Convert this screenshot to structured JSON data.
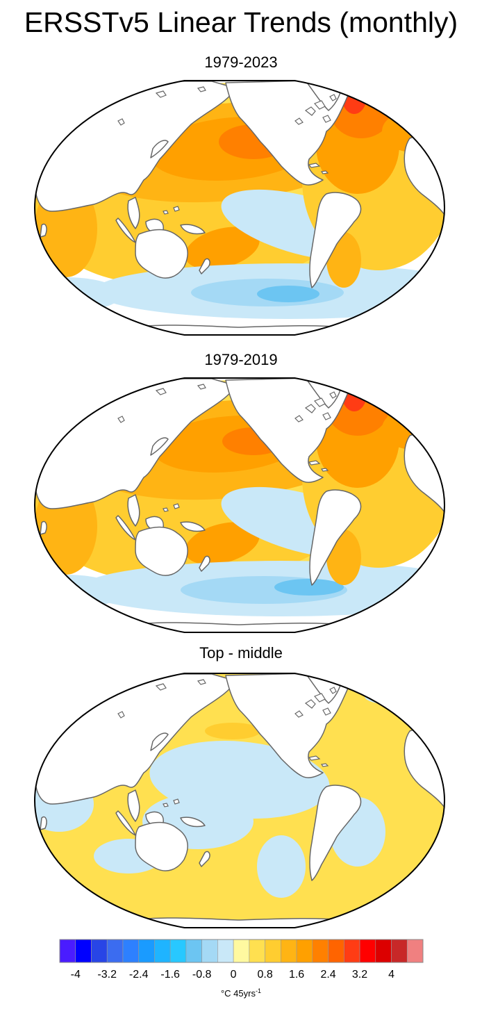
{
  "title": "ERSSTv5 Linear Trends (monthly)",
  "chart_data": [
    {
      "type": "heatmap",
      "projection": "robinson-like world map, Pacific-centered",
      "title": "1979-2023",
      "features": [
        {
          "name": "north-pacific-warm",
          "level": 1.6
        },
        {
          "name": "south-pacific-warm",
          "level": 1.6
        },
        {
          "name": "north-atlantic-warm",
          "level": 2.0
        },
        {
          "name": "subpolar-atlantic-hot",
          "level": 2.8
        },
        {
          "name": "arctic-hot",
          "level": 3.2
        },
        {
          "name": "indian-ocean-warm",
          "level": 0.8
        },
        {
          "name": "east-pacific-cool",
          "level": -0.4
        },
        {
          "name": "southern-ocean-cool",
          "level": -0.8
        },
        {
          "name": "southern-ocean-core-cool",
          "level": -1.2
        }
      ]
    },
    {
      "type": "heatmap",
      "projection": "robinson-like world map, Pacific-centered",
      "title": "1979-2019",
      "features": [
        {
          "name": "north-pacific-warm",
          "level": 1.6
        },
        {
          "name": "south-pacific-warm",
          "level": 1.6
        },
        {
          "name": "north-atlantic-warm",
          "level": 2.0
        },
        {
          "name": "subpolar-atlantic-hot",
          "level": 2.8
        },
        {
          "name": "arctic-hot",
          "level": 3.2
        },
        {
          "name": "indian-ocean-warm",
          "level": 0.8
        },
        {
          "name": "east-pacific-cool",
          "level": -0.4
        },
        {
          "name": "southern-ocean-cool",
          "level": -0.8
        },
        {
          "name": "southern-ocean-core-cool",
          "level": -1.2
        }
      ]
    },
    {
      "type": "heatmap",
      "projection": "robinson-like world map, Pacific-centered",
      "title": "Top - middle",
      "features": [
        {
          "name": "background-slight-warm",
          "level": 0.4
        },
        {
          "name": "tropical-pacific-slight-cool",
          "level": -0.4
        },
        {
          "name": "north-pacific-warm-patch",
          "level": 0.8
        },
        {
          "name": "south-indian-slight-cool",
          "level": -0.4
        },
        {
          "name": "atlantic-slight-cool",
          "level": -0.4
        }
      ]
    }
  ],
  "colorbar": {
    "levels": [
      -4.4,
      -4,
      -3.6,
      -3.2,
      -2.8,
      -2.4,
      -2,
      -1.6,
      -1.2,
      -0.8,
      -0.4,
      0,
      0.4,
      0.8,
      1.2,
      1.6,
      2,
      2.4,
      2.8,
      3.2,
      3.6,
      4,
      4.4
    ],
    "colors": [
      "#4a1cff",
      "#0000ff",
      "#2845e6",
      "#3b6cf0",
      "#2d80ff",
      "#1a9bff",
      "#1fb4ff",
      "#28c8ff",
      "#6cc5f2",
      "#a4d9f5",
      "#c9e8f8",
      "#fff9a0",
      "#ffe050",
      "#ffcd30",
      "#ffb414",
      "#ffa000",
      "#ff8000",
      "#ff6400",
      "#ff3c14",
      "#ff0000",
      "#dc0000",
      "#c82828",
      "#f08080"
    ],
    "tick_labels": [
      "-4",
      "-3.2",
      "-2.4",
      "-1.6",
      "-0.8",
      "0",
      "0.8",
      "1.6",
      "2.4",
      "3.2",
      "4"
    ],
    "units_main": "°C 45yrs",
    "units_sup": "-1"
  },
  "colors": {
    "land": "#ffffff",
    "coast": "#666666",
    "outline": "#000000"
  }
}
